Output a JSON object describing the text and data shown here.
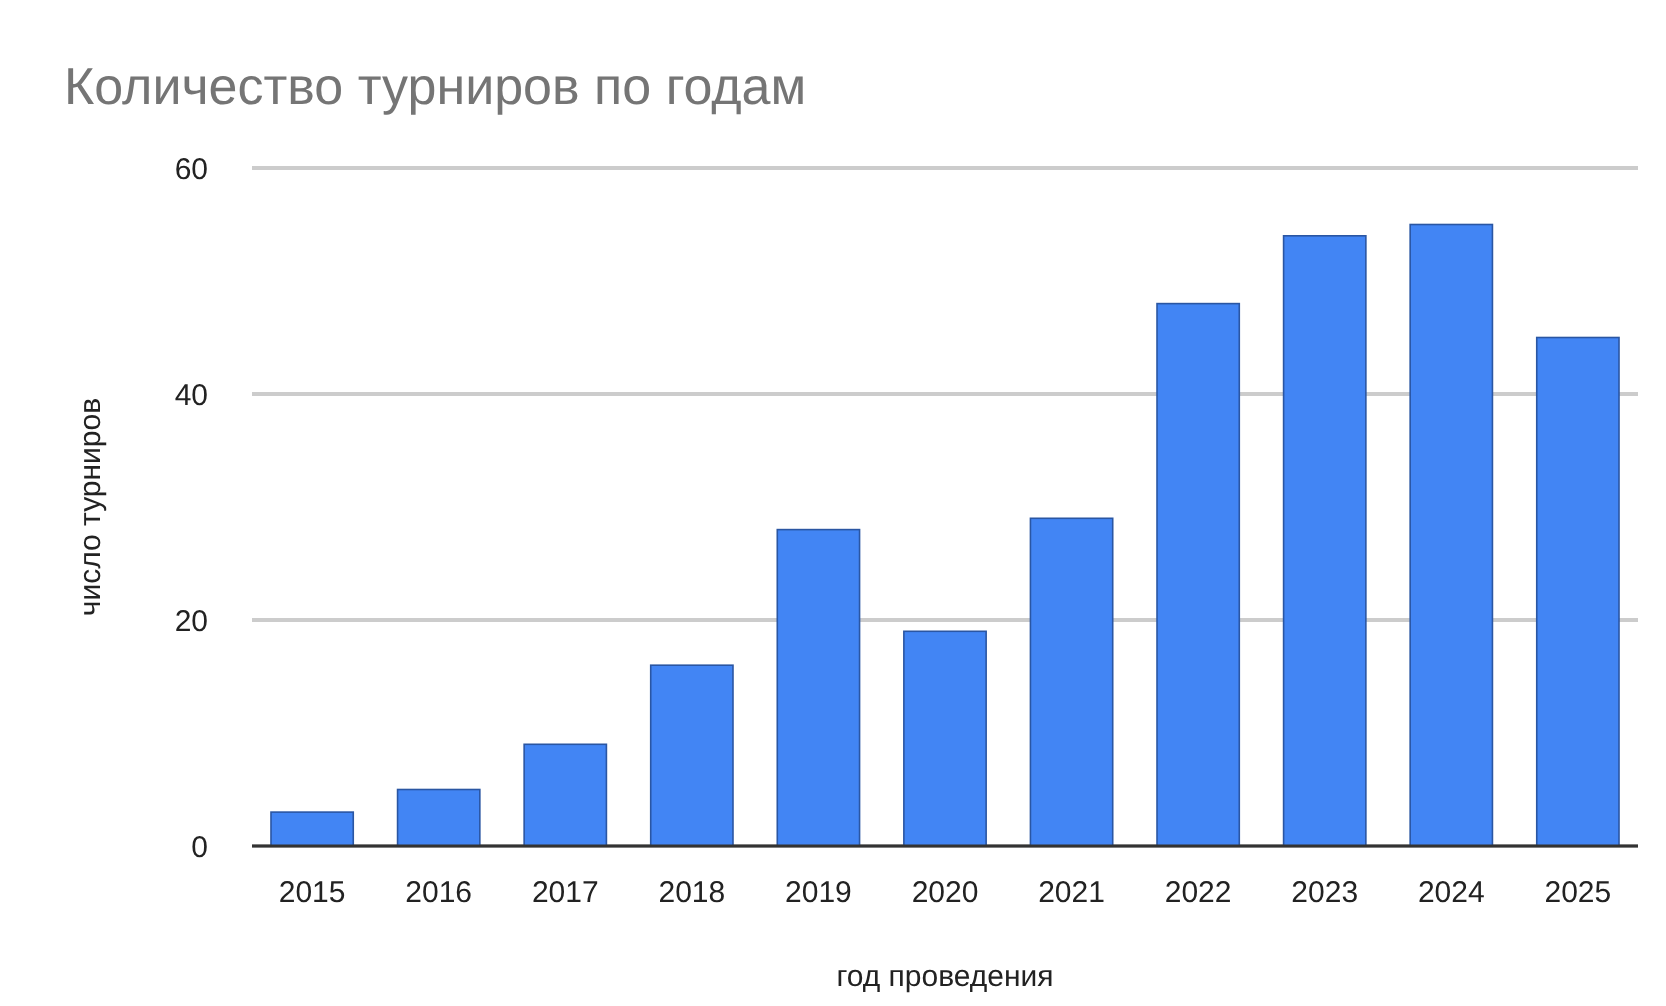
{
  "chart_data": {
    "type": "bar",
    "title": "Количество турниров по годам",
    "xlabel": "год проведения",
    "ylabel": "число турниров",
    "categories": [
      "2015",
      "2016",
      "2017",
      "2018",
      "2019",
      "2020",
      "2021",
      "2022",
      "2023",
      "2024",
      "2025"
    ],
    "values": [
      3,
      5,
      9,
      16,
      28,
      19,
      29,
      48,
      54,
      55,
      45
    ],
    "color": "#4285f4",
    "ylim": [
      0,
      60
    ],
    "yticks": [
      0,
      20,
      40,
      60
    ],
    "grid": "y"
  }
}
